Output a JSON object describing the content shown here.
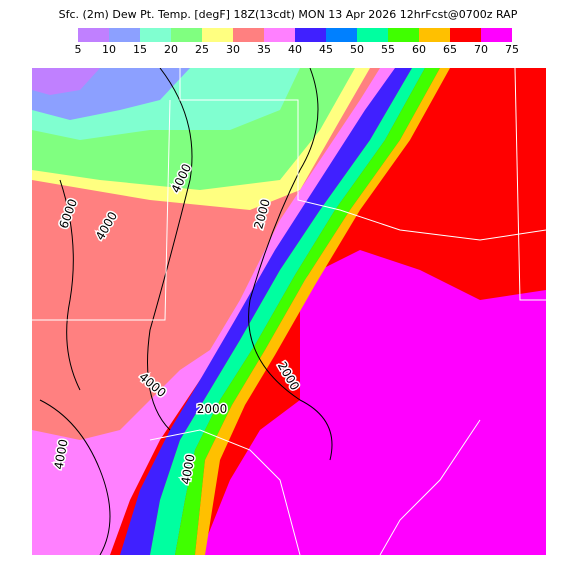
{
  "title": "Sfc. (2m) Dew Pt. Temp. [degF] 18Z(13cdt) MON 13 Apr 2026 12hrFcst@0700z RAP",
  "colorbar": {
    "ticks": [
      5,
      10,
      15,
      20,
      25,
      30,
      35,
      40,
      45,
      50,
      55,
      60,
      65,
      70,
      75
    ],
    "colors": [
      "#c080ff",
      "#8ca0ff",
      "#80ffd0",
      "#80ff80",
      "#ffff80",
      "#ff8080",
      "#ff80ff",
      "#4020ff",
      "#0080ff",
      "#00ffa0",
      "#40ff00",
      "#ffc000",
      "#ff0000",
      "#ff00ff"
    ]
  },
  "contour_labels": [
    "6000",
    "4000",
    "4000",
    "2000",
    "2000",
    "2000",
    "4000",
    "4000",
    "4000"
  ]
}
